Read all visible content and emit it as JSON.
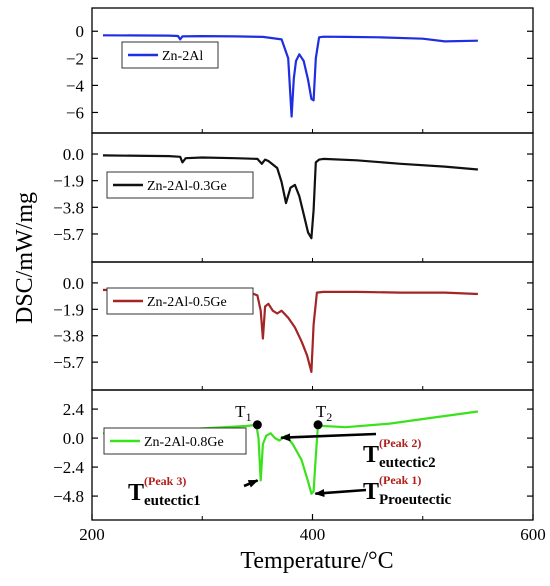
{
  "chart_data": {
    "type": "line",
    "ylabel": "DSC/mW/mg",
    "xlabel": "Temperature/°C",
    "xlim": [
      200,
      600
    ],
    "x_ticks": [
      200,
      400,
      600
    ],
    "panels": [
      {
        "legend": "Zn-2Al",
        "color": "#1f2ee0",
        "ylim": [
          -7,
          1.2
        ],
        "y_ticks": [
          "0",
          "−2",
          "−4",
          "−6"
        ],
        "y_tick_values": [
          0,
          -2,
          -4,
          -6
        ],
        "series": [
          {
            "name": "Zn-2Al",
            "x": [
              210,
              270,
              278,
              280,
              282,
              300,
              330,
              355,
              372,
              378,
              381,
              383,
              385,
              388,
              392,
              396,
              399,
              401,
              403,
              406,
              410,
              430,
              460,
              500,
              520,
              550
            ],
            "y": [
              -0.3,
              -0.32,
              -0.35,
              -0.6,
              -0.38,
              -0.36,
              -0.38,
              -0.42,
              -0.6,
              -2.0,
              -6.3,
              -3.5,
              -2.2,
              -1.7,
              -2.2,
              -3.6,
              -5.0,
              -5.1,
              -2.0,
              -0.45,
              -0.4,
              -0.42,
              -0.45,
              -0.55,
              -0.75,
              -0.7
            ]
          }
        ]
      },
      {
        "legend": "Zn-2Al-0.3Ge",
        "color": "#111111",
        "ylim": [
          -7.2,
          1.0
        ],
        "y_ticks": [
          "0.0",
          "−1.9",
          "−3.8",
          "−5.7"
        ],
        "y_tick_values": [
          0,
          -1.9,
          -3.8,
          -5.7
        ],
        "series": [
          {
            "name": "Zn-2Al-0.3Ge",
            "x": [
              210,
              270,
              280,
              282,
              285,
              300,
              330,
              350,
              354,
              357,
              360,
              368,
              372,
              376,
              380,
              384,
              388,
              392,
              396,
              399,
              401,
              403,
              406,
              410,
              440,
              480,
              520,
              550
            ],
            "y": [
              -0.1,
              -0.15,
              -0.2,
              -0.6,
              -0.3,
              -0.25,
              -0.3,
              -0.35,
              -0.7,
              -0.4,
              -0.5,
              -1.0,
              -2.0,
              -3.5,
              -2.4,
              -2.2,
              -3.0,
              -4.3,
              -5.6,
              -6.0,
              -4.0,
              -0.6,
              -0.4,
              -0.35,
              -0.45,
              -0.7,
              -0.9,
              -1.1
            ]
          }
        ]
      },
      {
        "legend": "Zn-2Al-0.5Ge",
        "color": "#a32525",
        "ylim": [
          -7.2,
          1.0
        ],
        "y_ticks": [
          "0.0",
          "−1.9",
          "−3.8",
          "−5.7"
        ],
        "y_tick_values": [
          0,
          -1.9,
          -3.8,
          -5.7
        ],
        "series": [
          {
            "name": "Zn-2Al-0.5Ge",
            "x": [
              210,
              270,
              278,
              280,
              283,
              300,
              330,
              345,
              350,
              353,
              355,
              357,
              360,
              364,
              368,
              372,
              378,
              384,
              390,
              395,
              399,
              401,
              404,
              410,
              440,
              480,
              520,
              550
            ],
            "y": [
              -0.5,
              -0.6,
              -0.7,
              -1.0,
              -0.7,
              -0.65,
              -0.7,
              -0.75,
              -0.9,
              -2.0,
              -4.0,
              -1.7,
              -1.5,
              -2.0,
              -2.2,
              -2.0,
              -2.5,
              -3.2,
              -4.2,
              -5.2,
              -6.4,
              -3.0,
              -0.7,
              -0.65,
              -0.65,
              -0.7,
              -0.7,
              -0.8
            ]
          }
        ]
      },
      {
        "legend": "Zn-2Al-0.8Ge",
        "color": "#39e21a",
        "ylim": [
          -6.2,
          3.4
        ],
        "y_ticks": [
          "2.4",
          "0.0",
          "−2.4",
          "−4.8"
        ],
        "y_tick_values": [
          2.4,
          0,
          -2.4,
          -4.8
        ],
        "series": [
          {
            "name": "Zn-2Al-0.8Ge",
            "x": [
              210,
              260,
              278,
              281,
              285,
              300,
              320,
              340,
              349,
              351,
              353,
              355,
              358,
              362,
              366,
              370,
              376,
              382,
              390,
              396,
              399,
              401,
              403,
              405,
              410,
              430,
              470,
              510,
              550
            ],
            "y": [
              0.4,
              0.6,
              0.7,
              0.2,
              0.7,
              0.8,
              0.9,
              1.0,
              1.1,
              0.0,
              -3.5,
              -0.5,
              0.2,
              0.4,
              0.0,
              -0.2,
              0.2,
              -0.5,
              -1.8,
              -3.6,
              -4.6,
              -4.4,
              -1.5,
              1.1,
              1.0,
              0.9,
              1.2,
              1.7,
              2.2
            ]
          }
        ],
        "markers": [
          {
            "label": "T",
            "sub": "1",
            "x": 350,
            "y": 1.1
          },
          {
            "label": "T",
            "sub": "2",
            "x": 405,
            "y": 1.1
          }
        ],
        "annotations": [
          {
            "main": "T",
            "sub": "eutectic2",
            "sup": "(Peak 2)",
            "target_x": 368,
            "target_y": 0.2
          },
          {
            "main": "T",
            "sub": "eutectic1",
            "sup": "(Peak 3)",
            "target_x": 352,
            "target_y": -3.5
          },
          {
            "main": "T",
            "sub": "Proeutectic",
            "sup": "(Peak 1)",
            "target_x": 399,
            "target_y": -4.6
          }
        ]
      }
    ]
  }
}
